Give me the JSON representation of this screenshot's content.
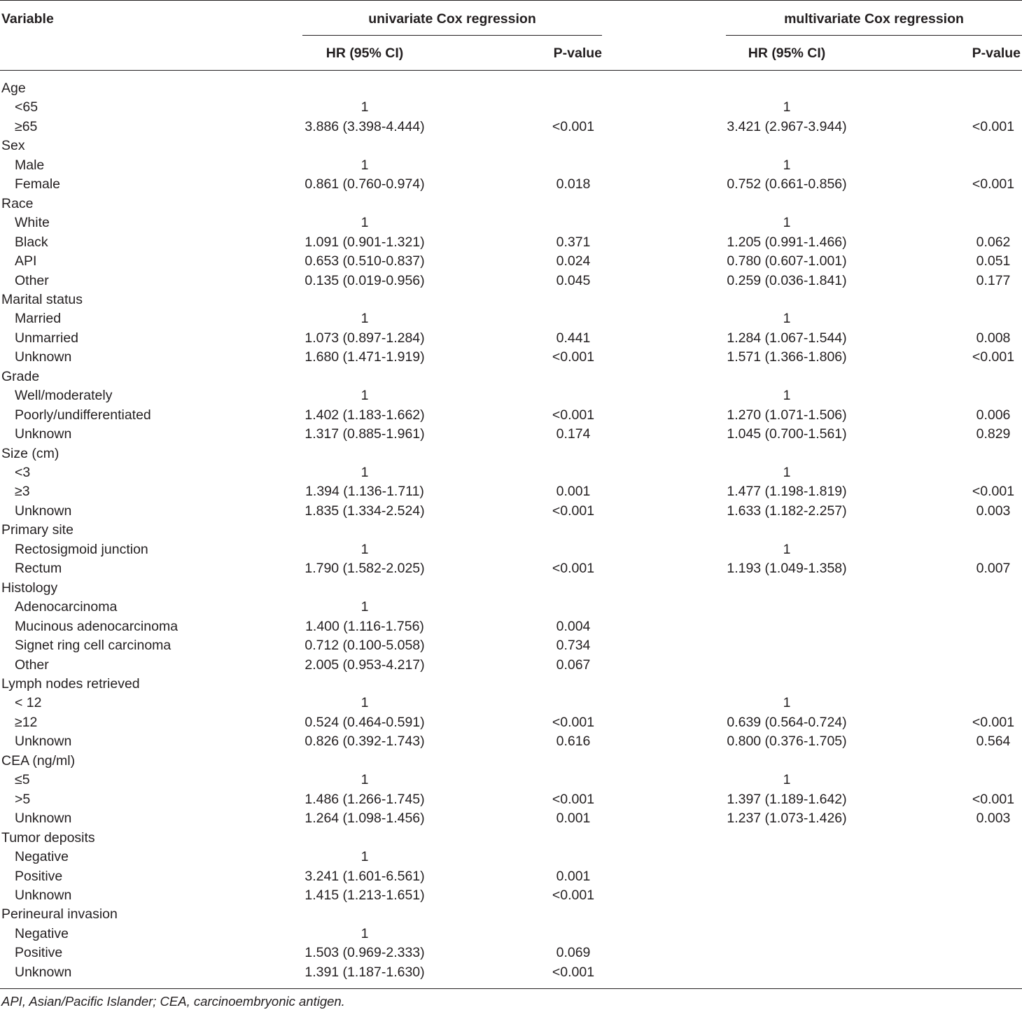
{
  "header": {
    "variable": "Variable",
    "univariate": "univariate Cox regression",
    "multivariate": "multivariate Cox regression",
    "hr": "HR  (95% CI)",
    "pvalue": "P-value"
  },
  "rows": [
    {
      "label": "Age",
      "group": true
    },
    {
      "label": "<65",
      "uhr": "1",
      "up": "",
      "mhr": "1",
      "mp": ""
    },
    {
      "label": "≥65",
      "uhr": "3.886  (3.398-4.444)",
      "up": "<0.001",
      "mhr": "3.421 (2.967-3.944)",
      "mp": "<0.001"
    },
    {
      "label": "Sex",
      "group": true
    },
    {
      "label": "Male",
      "uhr": "1",
      "up": "",
      "mhr": "1",
      "mp": ""
    },
    {
      "label": "Female",
      "uhr": "0.861 (0.760-0.974)",
      "up": "0.018",
      "mhr": "0.752 (0.661-0.856)",
      "mp": "<0.001"
    },
    {
      "label": "Race",
      "group": true
    },
    {
      "label": "White",
      "uhr": "1",
      "up": "",
      "mhr": "1",
      "mp": ""
    },
    {
      "label": "Black",
      "uhr": "1.091 (0.901-1.321)",
      "up": "0.371",
      "mhr": "1.205 (0.991-1.466)",
      "mp": "0.062"
    },
    {
      "label": "API",
      "uhr": "0.653 (0.510-0.837)",
      "up": "0.024",
      "mhr": "0.780 (0.607-1.001)",
      "mp": "0.051"
    },
    {
      "label": "Other",
      "uhr": "0.135 (0.019-0.956)",
      "up": "0.045",
      "mhr": "0.259 (0.036-1.841)",
      "mp": "0.177"
    },
    {
      "label": "Marital status",
      "group": true
    },
    {
      "label": "Married",
      "uhr": "1",
      "up": "",
      "mhr": "1",
      "mp": ""
    },
    {
      "label": "Unmarried",
      "uhr": "1.073 (0.897-1.284)",
      "up": "0.441",
      "mhr": "1.284 (1.067-1.544)",
      "mp": "0.008"
    },
    {
      "label": "Unknown",
      "uhr": "1.680 (1.471-1.919)",
      "up": "<0.001",
      "mhr": "1.571 (1.366-1.806)",
      "mp": "<0.001"
    },
    {
      "label": "Grade",
      "group": true
    },
    {
      "label": "Well/moderately",
      "uhr": "1",
      "up": "",
      "mhr": "1",
      "mp": ""
    },
    {
      "label": "Poorly/undifferentiated",
      "uhr": "1.402 (1.183-1.662)",
      "up": "<0.001",
      "mhr": "1.270 (1.071-1.506)",
      "mp": "0.006"
    },
    {
      "label": "Unknown",
      "uhr": "1.317 (0.885-1.961)",
      "up": "0.174",
      "mhr": "1.045 (0.700-1.561)",
      "mp": "0.829"
    },
    {
      "label": "Size  (cm)",
      "group": true
    },
    {
      "label": "<3",
      "uhr": "1",
      "up": "",
      "mhr": "1",
      "mp": ""
    },
    {
      "label": "≥3",
      "uhr": "1.394 (1.136-1.711)",
      "up": "0.001",
      "mhr": "1.477 (1.198-1.819)",
      "mp": "<0.001"
    },
    {
      "label": "Unknown",
      "uhr": "1.835 (1.334-2.524)",
      "up": "<0.001",
      "mhr": "1.633 (1.182-2.257)",
      "mp": "0.003"
    },
    {
      "label": "Primary site",
      "group": true
    },
    {
      "label": "Rectosigmoid junction",
      "uhr": "1",
      "up": "",
      "mhr": "1",
      "mp": ""
    },
    {
      "label": "Rectum",
      "uhr": "1.790 (1.582-2.025)",
      "up": "<0.001",
      "mhr": "1.193 (1.049-1.358)",
      "mp": "0.007"
    },
    {
      "label": "Histology",
      "group": true
    },
    {
      "label": "Adenocarcinoma",
      "uhr": "1",
      "up": "",
      "mhr": "",
      "mp": ""
    },
    {
      "label": "Mucinous adenocarcinoma",
      "uhr": "1.400 (1.116-1.756)",
      "up": "0.004",
      "mhr": "",
      "mp": ""
    },
    {
      "label": "Signet ring cell carcinoma",
      "uhr": "0.712  (0.100-5.058)",
      "up": "0.734",
      "mhr": "",
      "mp": ""
    },
    {
      "label": "Other",
      "uhr": "2.005 (0.953-4.217)",
      "up": "0.067",
      "mhr": "",
      "mp": ""
    },
    {
      "label": "Lymph nodes retrieved",
      "group": true
    },
    {
      "label": "< 12",
      "uhr": "1",
      "up": "",
      "mhr": "1",
      "mp": ""
    },
    {
      "label": "≥12",
      "uhr": "0.524 (0.464-0.591)",
      "up": "<0.001",
      "mhr": "0.639 (0.564-0.724)",
      "mp": "<0.001"
    },
    {
      "label": "Unknown",
      "uhr": "0.826 (0.392-1.743)",
      "up": "0.616",
      "mhr": "0.800 (0.376-1.705)",
      "mp": "0.564"
    },
    {
      "label": "CEA  (ng/ml)",
      "group": true
    },
    {
      "label": "≤5",
      "uhr": "1",
      "up": "",
      "mhr": "1",
      "mp": ""
    },
    {
      "label": ">5",
      "uhr": "1.486 (1.266-1.745)",
      "up": "<0.001",
      "mhr": "1.397 (1.189-1.642)",
      "mp": "<0.001"
    },
    {
      "label": "Unknown",
      "uhr": "1.264 (1.098-1.456)",
      "up": "0.001",
      "mhr": "1.237 (1.073-1.426)",
      "mp": "0.003"
    },
    {
      "label": "Tumor deposits",
      "group": true
    },
    {
      "label": "Negative",
      "uhr": "1",
      "up": "",
      "mhr": "",
      "mp": ""
    },
    {
      "label": "Positive",
      "uhr": "3.241 (1.601-6.561)",
      "up": "0.001",
      "mhr": "",
      "mp": ""
    },
    {
      "label": "Unknown",
      "uhr": "1.415 (1.213-1.651)",
      "up": "<0.001",
      "mhr": "",
      "mp": ""
    },
    {
      "label": "Perineural invasion",
      "group": true
    },
    {
      "label": "Negative",
      "uhr": "1",
      "up": "",
      "mhr": "",
      "mp": ""
    },
    {
      "label": "Positive",
      "uhr": "1.503 (0.969-2.333)",
      "up": "0.069",
      "mhr": "",
      "mp": ""
    },
    {
      "label": "Unknown",
      "uhr": "1.391 (1.187-1.630)",
      "up": "<0.001",
      "mhr": "",
      "mp": ""
    }
  ],
  "footnote": "API, Asian/Pacific Islander; CEA, carcinoembryonic antigen."
}
